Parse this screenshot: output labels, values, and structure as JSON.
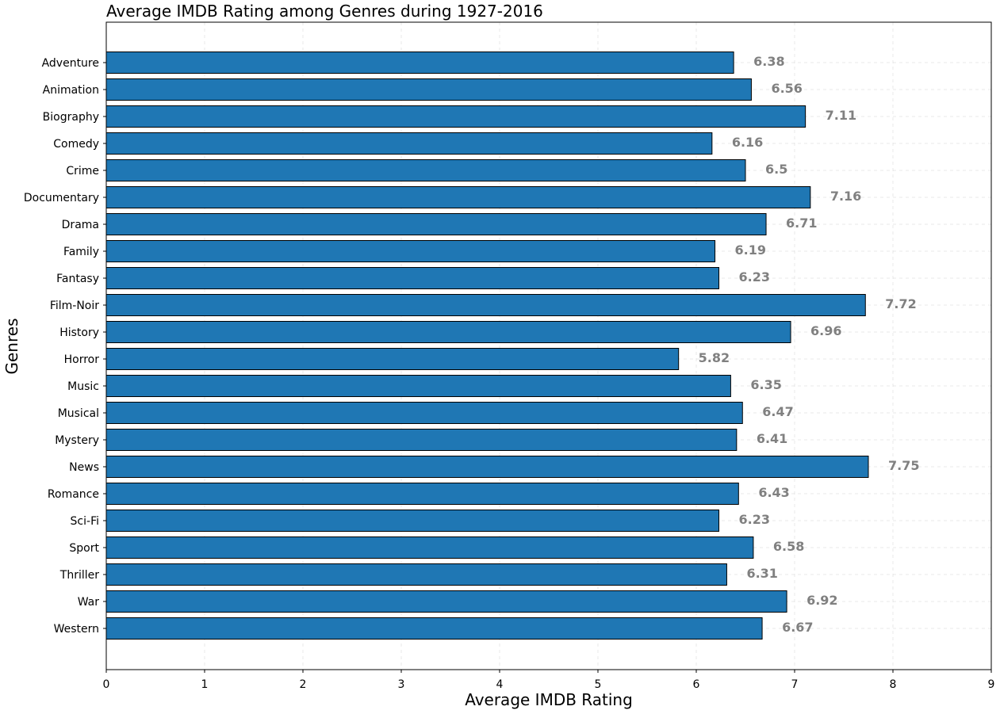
{
  "chart_data": {
    "type": "bar",
    "orientation": "horizontal",
    "title": "Average IMDB Rating among Genres during 1927-2016",
    "xlabel": "Average IMDB Rating",
    "ylabel": "Genres",
    "xlim": [
      0,
      9
    ],
    "x_ticks": [
      "0",
      "1",
      "2",
      "3",
      "4",
      "5",
      "6",
      "7",
      "8",
      "9"
    ],
    "grid": true,
    "bar_color": "#1f77b4",
    "value_label_color": "#808080",
    "categories": [
      "Adventure",
      "Animation",
      "Biography",
      "Comedy",
      "Crime",
      "Documentary",
      "Drama",
      "Family",
      "Fantasy",
      "Film-Noir",
      "History",
      "Horror",
      "Music",
      "Musical",
      "Mystery",
      "News",
      "Romance",
      "Sci-Fi",
      "Sport",
      "Thriller",
      "War",
      "Western"
    ],
    "values": [
      6.38,
      6.56,
      7.11,
      6.16,
      6.5,
      7.16,
      6.71,
      6.19,
      6.23,
      7.72,
      6.96,
      5.82,
      6.35,
      6.47,
      6.41,
      7.75,
      6.43,
      6.23,
      6.58,
      6.31,
      6.92,
      6.67
    ],
    "value_labels": [
      "6.38",
      "6.56",
      "7.11",
      "6.16",
      "6.5",
      "7.16",
      "6.71",
      "6.19",
      "6.23",
      "7.72",
      "6.96",
      "5.82",
      "6.35",
      "6.47",
      "6.41",
      "7.75",
      "6.43",
      "6.23",
      "6.58",
      "6.31",
      "6.92",
      "6.67"
    ]
  }
}
